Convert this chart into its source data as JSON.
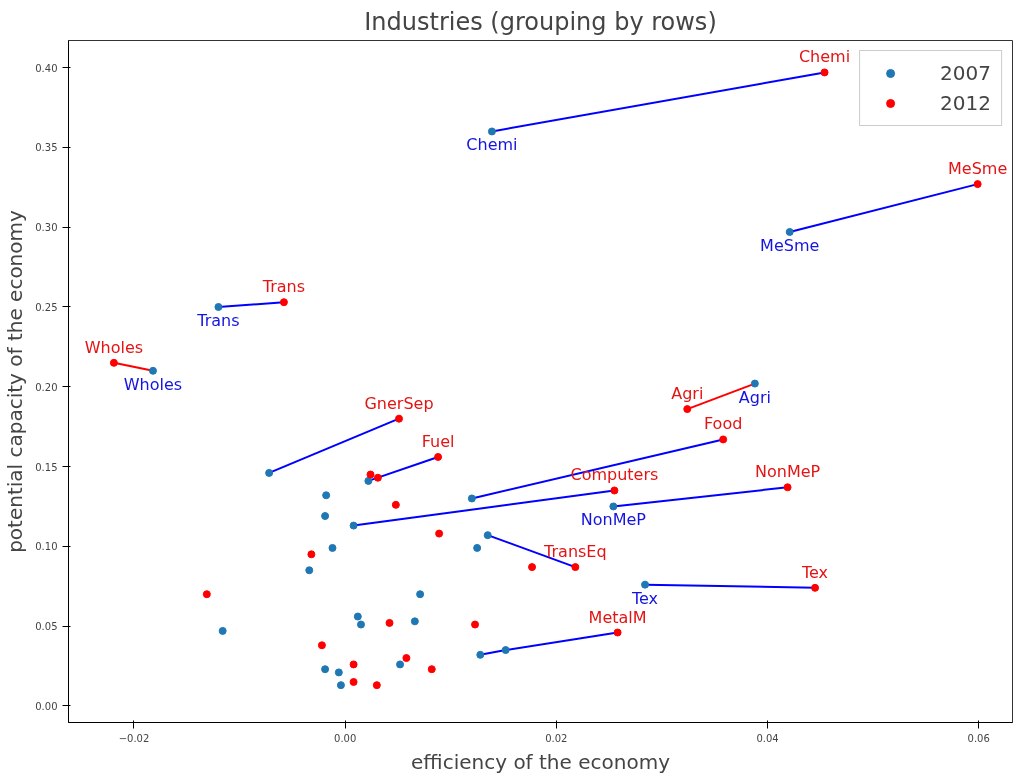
{
  "chart_data": {
    "type": "scatter",
    "title": "Industries (grouping by rows)",
    "xlabel": "efficiency of the economy",
    "ylabel": "potential capacity of the economy",
    "xlim": [
      -0.0262,
      0.0632
    ],
    "ylim": [
      -0.0104,
      0.417
    ],
    "xticks": [
      {
        "value": -0.02,
        "label": "−0.02"
      },
      {
        "value": 0,
        "label": "0.00"
      },
      {
        "value": 0.02,
        "label": "0.02"
      },
      {
        "value": 0.04,
        "label": "0.04"
      },
      {
        "value": 0.06,
        "label": "0.06"
      }
    ],
    "yticks": [
      {
        "value": 0,
        "label": "0.00"
      },
      {
        "value": 0.05,
        "label": "0.05"
      },
      {
        "value": 0.1,
        "label": "0.10"
      },
      {
        "value": 0.15,
        "label": "0.15"
      },
      {
        "value": 0.2,
        "label": "0.20"
      },
      {
        "value": 0.25,
        "label": "0.25"
      },
      {
        "value": 0.3,
        "label": "0.30"
      },
      {
        "value": 0.35,
        "label": "0.35"
      },
      {
        "value": 0.4,
        "label": "0.40"
      }
    ],
    "grid": false,
    "legend": "top right",
    "marker": "circle",
    "series": [
      {
        "type": "line",
        "marker": "none",
        "color": "#0000ff",
        "x": [
          0.0139,
          0.0454
        ],
        "values": [
          0.36,
          0.397
        ]
      },
      {
        "type": "line",
        "marker": "none",
        "color": "#0000ff",
        "x": [
          0.0421,
          0.0599
        ],
        "values": [
          0.297,
          0.327
        ]
      },
      {
        "type": "line",
        "marker": "none",
        "color": "#0000ff",
        "x": [
          -0.012,
          -0.0058
        ],
        "values": [
          0.25,
          0.253
        ]
      },
      {
        "type": "line",
        "marker": "none",
        "color": "#ff0000",
        "x": [
          -0.0182,
          -0.0219
        ],
        "values": [
          0.21,
          0.215
        ]
      },
      {
        "type": "line",
        "marker": "none",
        "color": "#0000ff",
        "x": [
          -0.0072,
          0.0051
        ],
        "values": [
          0.146,
          0.18
        ]
      },
      {
        "type": "line",
        "marker": "none",
        "color": "#0000ff",
        "x": [
          0.0022,
          0.0088
        ],
        "values": [
          0.141,
          0.156
        ]
      },
      {
        "type": "line",
        "marker": "none",
        "color": "#ff0000",
        "x": [
          0.0388,
          0.0324
        ],
        "values": [
          0.202,
          0.186
        ]
      },
      {
        "type": "line",
        "marker": "none",
        "color": "#0000ff",
        "x": [
          0.012,
          0.0358
        ],
        "values": [
          0.13,
          0.167
        ]
      },
      {
        "type": "line",
        "marker": "none",
        "color": "#0000ff",
        "x": [
          0.0008,
          0.0255
        ],
        "values": [
          0.113,
          0.135
        ]
      },
      {
        "type": "line",
        "marker": "none",
        "color": "#0000ff",
        "x": [
          0.0254,
          0.0419
        ],
        "values": [
          0.125,
          0.137
        ]
      },
      {
        "type": "line",
        "marker": "none",
        "color": "#0000ff",
        "x": [
          0.0135,
          0.0218
        ],
        "values": [
          0.107,
          0.087
        ]
      },
      {
        "type": "line",
        "marker": "none",
        "color": "#0000ff",
        "x": [
          0.0284,
          0.0445
        ],
        "values": [
          0.076,
          0.074
        ]
      },
      {
        "type": "line",
        "marker": "none",
        "color": "#0000ff",
        "x": [
          0.0128,
          0.0152,
          0.0258
        ],
        "values": [
          0.032,
          0.035,
          0.046
        ]
      },
      {
        "name": "2007",
        "color": "#1f77b4",
        "x": [
          0.0139,
          0.0421,
          -0.012,
          -0.0182,
          -0.0072,
          0.0022,
          0.0388,
          0.012,
          0.0008,
          0.0254,
          0.0135,
          0.0284,
          0.0128,
          0.0152,
          -0.0018,
          -0.0019,
          0.0125,
          -0.0012,
          -0.0034,
          -0.0116,
          0.0071,
          0.0012,
          0.0015,
          0.0066,
          0.0052,
          -0.0019,
          -0.0006,
          -0.0004
        ],
        "values": [
          0.36,
          0.297,
          0.25,
          0.21,
          0.146,
          0.141,
          0.202,
          0.13,
          0.113,
          0.125,
          0.107,
          0.076,
          0.032,
          0.035,
          0.132,
          0.119,
          0.099,
          0.099,
          0.085,
          0.047,
          0.07,
          0.056,
          0.051,
          0.053,
          0.026,
          0.023,
          0.021,
          0.013
        ],
        "value_labels": [
          "Chemi",
          "MeSme",
          "Trans",
          "Wholes",
          null,
          null,
          "Agri",
          null,
          null,
          "NonMeP",
          null,
          "Tex",
          null,
          null,
          null,
          null,
          null,
          null,
          null,
          null,
          null,
          null,
          null,
          null,
          null,
          null,
          null,
          null
        ]
      },
      {
        "name": "2012",
        "color": "#ff0000",
        "x": [
          0.0454,
          0.0599,
          -0.0058,
          -0.0219,
          0.0051,
          0.0088,
          0.0324,
          0.0358,
          0.0255,
          0.0419,
          0.0218,
          0.0445,
          0.0258,
          0.0024,
          0.0031,
          0.0048,
          0.0089,
          -0.0032,
          0.0177,
          -0.0131,
          0.0042,
          0.0123,
          -0.0022,
          0.0058,
          0.0008,
          0.0082,
          0.0008,
          0.003
        ],
        "values": [
          0.397,
          0.327,
          0.253,
          0.215,
          0.18,
          0.156,
          0.186,
          0.167,
          0.135,
          0.137,
          0.087,
          0.074,
          0.046,
          0.145,
          0.143,
          0.126,
          0.108,
          0.095,
          0.087,
          0.07,
          0.052,
          0.051,
          0.038,
          0.03,
          0.026,
          0.023,
          0.015,
          0.013
        ],
        "value_labels": [
          "Chemi",
          "MeSme",
          "Trans",
          "Wholes",
          "GnerSep",
          "Fuel",
          "Agri",
          "Food",
          "Computers",
          "NonMeP",
          "TransEq",
          "Tex",
          "MetalM",
          null,
          null,
          null,
          null,
          null,
          null,
          null,
          null,
          null,
          null,
          null,
          null,
          null,
          null,
          null
        ]
      }
    ]
  }
}
